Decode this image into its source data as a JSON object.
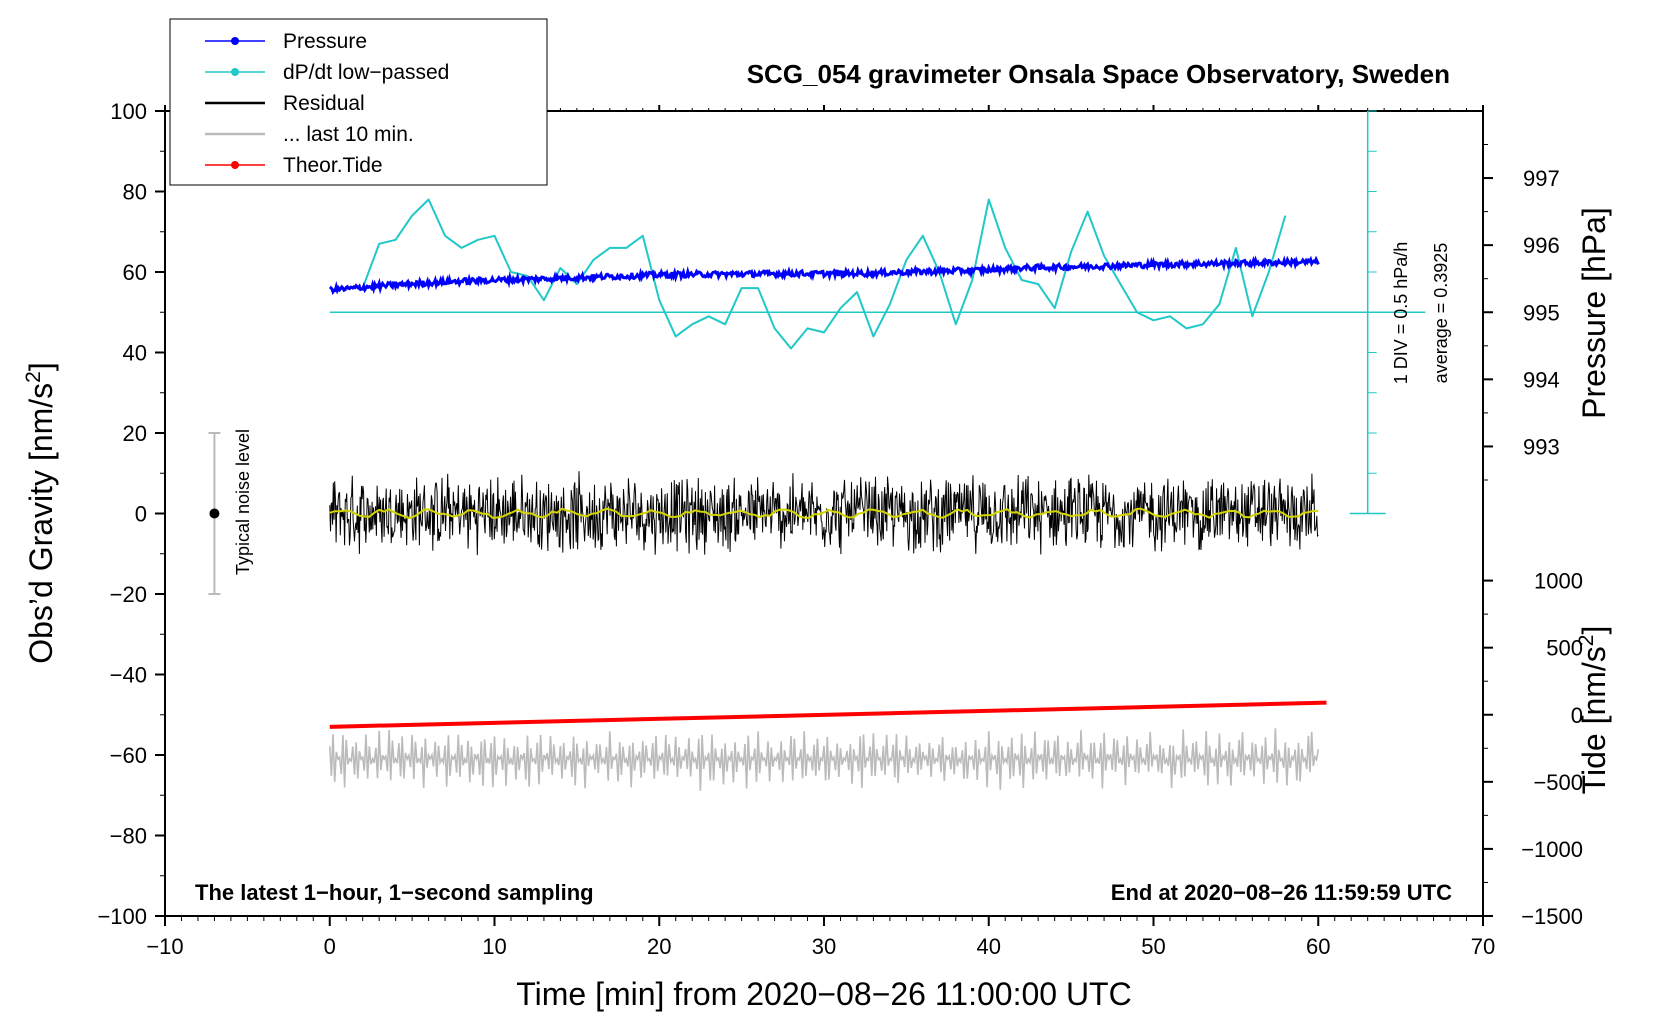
{
  "chart_data": {
    "type": "line",
    "title": "SCG_054 gravimeter Onsala Space Observatory, Sweden",
    "xlabel": "Time [min] from 2020−08−26 11:00:00 UTC",
    "ylabel_prefix": "Obs’d Gravity [nm/s",
    "ylabel_sup": "2",
    "ylabel_suffix": "]",
    "xlim": [
      -10,
      70
    ],
    "ylim": [
      -100,
      100
    ],
    "xticks": [
      -10,
      0,
      10,
      20,
      30,
      40,
      50,
      60,
      70
    ],
    "xtick_labels": [
      "−10",
      "0",
      "10",
      "20",
      "30",
      "40",
      "50",
      "60",
      "70"
    ],
    "yticks": [
      -100,
      -80,
      -60,
      -40,
      -20,
      0,
      20,
      40,
      60,
      80,
      100
    ],
    "ytick_labels": [
      "−100",
      "−80",
      "−60",
      "−40",
      "−20",
      "0",
      "20",
      "40",
      "60",
      "80",
      "100"
    ],
    "pressure_axis": {
      "label": "Pressure [hPa]",
      "ticks": [
        993,
        994,
        995,
        996,
        997
      ],
      "tick_labels": [
        "993",
        "994",
        "995",
        "996",
        "997"
      ],
      "gravity_at_995": 50,
      "gravity_per_hpa": 16.67
    },
    "tide_axis": {
      "label_prefix": "Tide [nm/s",
      "label_sup": "2",
      "label_suffix": "]",
      "ticks": [
        -1500,
        -1000,
        -500,
        0,
        500,
        1000
      ],
      "tick_labels": [
        "−1500",
        "−1000",
        "−500",
        "0",
        "500",
        "1000"
      ],
      "gravity_at_zero_tide": -50,
      "gravity_per_1000_tide": 33.33
    },
    "dpdt_scale": {
      "text1": "1 DIV = 0.5 hPa/h",
      "text2": "average = 0.3925",
      "baseline": 50,
      "top": 100,
      "bottom": 0,
      "x": 63
    },
    "noise_bar": {
      "label": "Typical noise level",
      "x": -7,
      "center": 0,
      "half_range": 20
    },
    "note_left": "The latest 1−hour, 1−second sampling",
    "note_right": "End at 2020−08−26 11:59:59 UTC",
    "legend": [
      {
        "label": "Pressure",
        "color": "#0000ff",
        "marker": true
      },
      {
        "label": "dP/dt low−passed",
        "color": "#20c8c8",
        "marker": true
      },
      {
        "label": "Residual",
        "color": "#000000",
        "marker": false
      },
      {
        "label": "... last 10 min.",
        "color": "#bbbbbb",
        "marker": false
      },
      {
        "label": "Theor.Tide",
        "color": "#ff0000",
        "marker": true
      }
    ],
    "colors": {
      "pressure": "#0000ff",
      "dpdt": "#20c8c8",
      "residual": "#000000",
      "residual_smooth": "#d4d400",
      "last10": "#bbbbbb",
      "tide": "#ff0000",
      "noise_bar": "#bbbbbb"
    },
    "series": [
      {
        "name": "Pressure",
        "x": [
          0,
          1,
          2,
          4,
          6,
          8,
          10,
          12,
          15,
          18,
          20,
          22,
          25,
          28,
          30,
          33,
          35,
          38,
          40,
          42,
          45,
          48,
          50,
          52,
          55,
          58,
          60
        ],
        "y": [
          55.7,
          55.8,
          56.2,
          56.8,
          57.3,
          57.7,
          58.0,
          58.2,
          58.6,
          59.0,
          59.3,
          59.4,
          59.5,
          59.6,
          59.6,
          59.7,
          60.0,
          60.3,
          60.5,
          61.0,
          61.3,
          61.6,
          61.8,
          62.0,
          62.2,
          62.4,
          62.5
        ]
      },
      {
        "name": "dP/dt low−passed",
        "x": [
          2,
          3,
          4,
          5,
          6,
          7,
          8,
          9,
          10,
          11,
          12,
          13,
          14,
          15,
          16,
          17,
          18,
          19,
          20,
          21,
          22,
          23,
          24,
          25,
          26,
          27,
          28,
          29,
          30,
          31,
          32,
          33,
          34,
          35,
          36,
          37,
          38,
          39,
          40,
          41,
          42,
          43,
          44,
          45,
          46,
          47,
          48,
          49,
          50,
          51,
          52,
          53,
          54,
          55,
          56,
          57,
          58
        ],
        "y": [
          56,
          67,
          68,
          74,
          78,
          69,
          66,
          68,
          69,
          60,
          59,
          53,
          61,
          57,
          63,
          66,
          66,
          69,
          53,
          44,
          47,
          49,
          47,
          56,
          56,
          46,
          41,
          46,
          45,
          51,
          55,
          44,
          52,
          63,
          69,
          60,
          47,
          58,
          78,
          66,
          58,
          57,
          51,
          65,
          75,
          64,
          57,
          50,
          48,
          49,
          46,
          47,
          52,
          66,
          49,
          60,
          74
        ]
      },
      {
        "name": "Residual",
        "x": [
          0,
          60
        ],
        "y": [
          0,
          0
        ],
        "band": 9
      },
      {
        "name": "... last 10 min.",
        "x": [
          0,
          60
        ],
        "y": [
          -61,
          -61
        ],
        "band": 8
      },
      {
        "name": "Theor.Tide",
        "x": [
          0,
          60.5
        ],
        "y": [
          -53,
          -47
        ]
      }
    ]
  }
}
